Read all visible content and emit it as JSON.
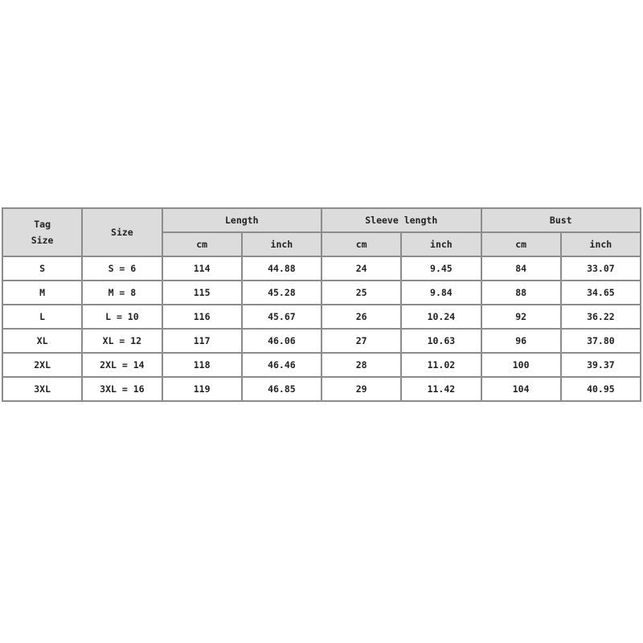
{
  "headers": {
    "tag_size": [
      "Tag",
      "Size"
    ],
    "size": "Size",
    "groups": [
      "Length",
      "Sleeve length",
      "Bust"
    ],
    "units": [
      "cm",
      "inch",
      "cm",
      "inch",
      "cm",
      "inch"
    ]
  },
  "rows": [
    [
      "S",
      "S = 6",
      "114",
      "44.88",
      "24",
      "9.45",
      "84",
      "33.07"
    ],
    [
      "M",
      "M = 8",
      "115",
      "45.28",
      "25",
      "9.84",
      "88",
      "34.65"
    ],
    [
      "L",
      "L = 10",
      "116",
      "45.67",
      "26",
      "10.24",
      "92",
      "36.22"
    ],
    [
      "XL",
      "XL = 12",
      "117",
      "46.06",
      "27",
      "10.63",
      "96",
      "37.80"
    ],
    [
      "2XL",
      "2XL = 14",
      "118",
      "46.46",
      "28",
      "11.02",
      "100",
      "39.37"
    ],
    [
      "3XL",
      "3XL = 16",
      "119",
      "46.85",
      "29",
      "11.42",
      "104",
      "40.95"
    ]
  ]
}
